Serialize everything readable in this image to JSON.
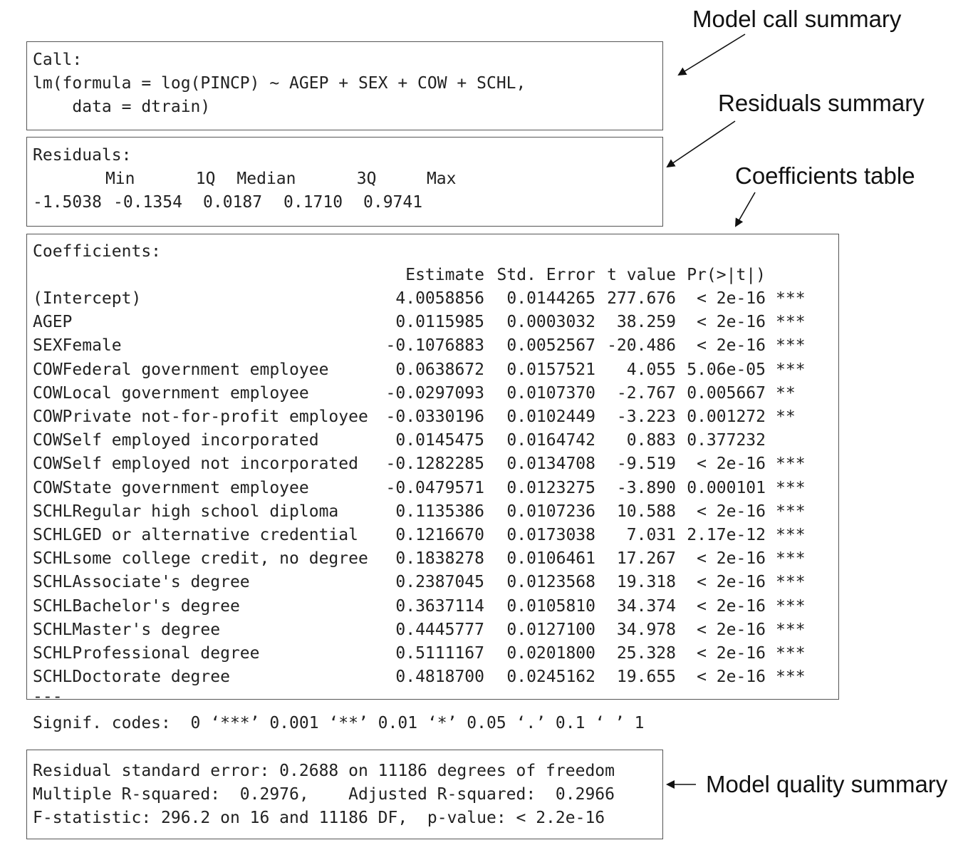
{
  "labels": {
    "call": "Model call summary",
    "residuals": "Residuals summary",
    "coefficients": "Coefficients table",
    "quality": "Model quality summary"
  },
  "call": {
    "heading": "Call:",
    "line1": "lm(formula = log(PINCP) ~ AGEP + SEX + COW + SCHL,",
    "line2": "    data = dtrain)"
  },
  "residuals": {
    "heading": "Residuals:",
    "headers": [
      "Min",
      "1Q",
      "Median",
      "3Q",
      "Max"
    ],
    "values": [
      "-1.5038",
      "-0.1354",
      "0.0187",
      "0.1710",
      "0.9741"
    ]
  },
  "coefficients": {
    "heading": "Coefficients:",
    "columns": [
      "Estimate",
      "Std. Error",
      "t value",
      "Pr(>|t|)"
    ],
    "rows": [
      {
        "term": "(Intercept)",
        "estimate": "4.0058856",
        "se": "0.0144265",
        "t": "277.676",
        "p": "< 2e-16",
        "sig": "***"
      },
      {
        "term": "AGEP",
        "estimate": "0.0115985",
        "se": "0.0003032",
        "t": "38.259",
        "p": "< 2e-16",
        "sig": "***"
      },
      {
        "term": "SEXFemale",
        "estimate": "-0.1076883",
        "se": "0.0052567",
        "t": "-20.486",
        "p": "< 2e-16",
        "sig": "***"
      },
      {
        "term": "COWFederal government employee",
        "estimate": "0.0638672",
        "se": "0.0157521",
        "t": "4.055",
        "p": "5.06e-05",
        "sig": "***"
      },
      {
        "term": "COWLocal government employee",
        "estimate": "-0.0297093",
        "se": "0.0107370",
        "t": "-2.767",
        "p": "0.005667",
        "sig": "**"
      },
      {
        "term": "COWPrivate not-for-profit employee",
        "estimate": "-0.0330196",
        "se": "0.0102449",
        "t": "-3.223",
        "p": "0.001272",
        "sig": "**"
      },
      {
        "term": "COWSelf employed incorporated",
        "estimate": "0.0145475",
        "se": "0.0164742",
        "t": "0.883",
        "p": "0.377232",
        "sig": ""
      },
      {
        "term": "COWSelf employed not incorporated",
        "estimate": "-0.1282285",
        "se": "0.0134708",
        "t": "-9.519",
        "p": "< 2e-16",
        "sig": "***"
      },
      {
        "term": "COWState government employee",
        "estimate": "-0.0479571",
        "se": "0.0123275",
        "t": "-3.890",
        "p": "0.000101",
        "sig": "***"
      },
      {
        "term": "SCHLRegular high school diploma",
        "estimate": "0.1135386",
        "se": "0.0107236",
        "t": "10.588",
        "p": "< 2e-16",
        "sig": "***"
      },
      {
        "term": "SCHLGED or alternative credential",
        "estimate": "0.1216670",
        "se": "0.0173038",
        "t": "7.031",
        "p": "2.17e-12",
        "sig": "***"
      },
      {
        "term": "SCHLsome college credit, no degree",
        "estimate": "0.1838278",
        "se": "0.0106461",
        "t": "17.267",
        "p": "< 2e-16",
        "sig": "***"
      },
      {
        "term": "SCHLAssociate's degree",
        "estimate": "0.2387045",
        "se": "0.0123568",
        "t": "19.318",
        "p": "< 2e-16",
        "sig": "***"
      },
      {
        "term": "SCHLBachelor's degree",
        "estimate": "0.3637114",
        "se": "0.0105810",
        "t": "34.374",
        "p": "< 2e-16",
        "sig": "***"
      },
      {
        "term": "SCHLMaster's degree",
        "estimate": "0.4445777",
        "se": "0.0127100",
        "t": "34.978",
        "p": "< 2e-16",
        "sig": "***"
      },
      {
        "term": "SCHLProfessional degree",
        "estimate": "0.5111167",
        "se": "0.0201800",
        "t": "25.328",
        "p": "< 2e-16",
        "sig": "***"
      },
      {
        "term": "SCHLDoctorate degree",
        "estimate": "0.4818700",
        "se": "0.0245162",
        "t": "19.655",
        "p": "< 2e-16",
        "sig": "***"
      }
    ]
  },
  "signif": {
    "dashes": "---",
    "line": "Signif. codes:  0 ‘***’ 0.001 ‘**’ 0.01 ‘*’ 0.05 ‘.’ 0.1 ‘ ’ 1"
  },
  "quality": {
    "line1": "Residual standard error: 0.2688 on 11186 degrees of freedom",
    "line2": "Multiple R-squared:  0.2976,    Adjusted R-squared:  0.2966",
    "line3": "F-statistic: 296.2 on 16 and 11186 DF,  p-value: < 2.2e-16"
  }
}
